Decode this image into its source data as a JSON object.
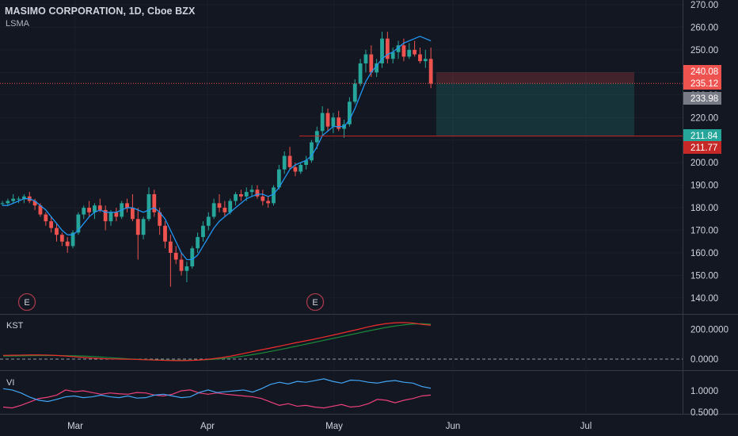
{
  "header": {
    "symbol": "MASIMO CORPORATION, 1D, Cboe BZX",
    "indicator": "LSMA"
  },
  "panes": {
    "kst_label": "KST",
    "vi_label": "VI"
  },
  "earnings_marker": "E",
  "colors": {
    "background": "#131722",
    "up": "#26a69a",
    "down": "#ef5350",
    "lsma": "#2196f3",
    "kst": "#ef2c2c",
    "kst_signal": "#1b8a3a",
    "vi_plus": "#42a5f5",
    "vi_minus": "#ec407a",
    "grid": "#363a45"
  },
  "price_axis": {
    "ticks": [
      "270.00",
      "260.00",
      "250.00",
      "240.00",
      "230.00",
      "220.00",
      "210.00",
      "200.00",
      "190.00",
      "180.00",
      "170.00",
      "160.00",
      "150.00",
      "140.00"
    ],
    "tags": [
      {
        "text": "240.08",
        "bg": "#ef5350"
      },
      {
        "text": "235.12",
        "bg": "#ef5350"
      },
      {
        "text": "233.98",
        "bg": "#787b86"
      },
      {
        "text": "211.84",
        "bg": "#26a69a"
      },
      {
        "text": "211.77",
        "bg": "#c62828"
      }
    ]
  },
  "kst_axis": {
    "ticks": [
      "200.0000",
      "0.0000"
    ]
  },
  "vi_axis": {
    "ticks": [
      "1.0000",
      "0.5000"
    ]
  },
  "time_axis": {
    "labels": [
      "Mar",
      "Apr",
      "May",
      "Jun",
      "Jul"
    ]
  },
  "chart_data": {
    "type": "candlestick",
    "title": "MASIMO CORPORATION, 1D, Cboe BZX",
    "ylim": [
      132,
      275
    ],
    "candles": [
      [
        182,
        183,
        181,
        182
      ],
      [
        182,
        184,
        181,
        183
      ],
      [
        183,
        186,
        182,
        184
      ],
      [
        184,
        185,
        182,
        184
      ],
      [
        184,
        186,
        182,
        185
      ],
      [
        185,
        187,
        182,
        183
      ],
      [
        183,
        184,
        179,
        181
      ],
      [
        181,
        182,
        176,
        177
      ],
      [
        177,
        178,
        172,
        174
      ],
      [
        174,
        176,
        169,
        171
      ],
      [
        171,
        173,
        165,
        168
      ],
      [
        168,
        169,
        163,
        165
      ],
      [
        165,
        167,
        160,
        163
      ],
      [
        163,
        170,
        162,
        169
      ],
      [
        169,
        178,
        168,
        177
      ],
      [
        177,
        181,
        175,
        180
      ],
      [
        180,
        183,
        176,
        178
      ],
      [
        178,
        182,
        175,
        181
      ],
      [
        181,
        184,
        178,
        179
      ],
      [
        179,
        181,
        170,
        174
      ],
      [
        174,
        179,
        172,
        178
      ],
      [
        178,
        180,
        174,
        176
      ],
      [
        176,
        183,
        175,
        182
      ],
      [
        182,
        184,
        178,
        180
      ],
      [
        180,
        186,
        174,
        175
      ],
      [
        175,
        180,
        157,
        168
      ],
      [
        168,
        176,
        166,
        175
      ],
      [
        175,
        189,
        174,
        186
      ],
      [
        186,
        188,
        176,
        178
      ],
      [
        178,
        180,
        168,
        172
      ],
      [
        172,
        174,
        162,
        165
      ],
      [
        165,
        168,
        145,
        160
      ],
      [
        160,
        163,
        155,
        157
      ],
      [
        157,
        160,
        150,
        152
      ],
      [
        152,
        156,
        147,
        154
      ],
      [
        154,
        163,
        153,
        162
      ],
      [
        162,
        169,
        160,
        167
      ],
      [
        167,
        174,
        165,
        172
      ],
      [
        172,
        178,
        170,
        176
      ],
      [
        176,
        184,
        175,
        182
      ],
      [
        182,
        186,
        178,
        180
      ],
      [
        180,
        183,
        176,
        178
      ],
      [
        178,
        184,
        177,
        183
      ],
      [
        183,
        187,
        181,
        186
      ],
      [
        186,
        188,
        183,
        185
      ],
      [
        185,
        189,
        183,
        187
      ],
      [
        187,
        190,
        185,
        188
      ],
      [
        188,
        190,
        184,
        185
      ],
      [
        185,
        188,
        181,
        183
      ],
      [
        183,
        185,
        180,
        182
      ],
      [
        182,
        190,
        181,
        189
      ],
      [
        189,
        199,
        188,
        197
      ],
      [
        197,
        205,
        195,
        203
      ],
      [
        203,
        207,
        197,
        198
      ],
      [
        198,
        200,
        194,
        196
      ],
      [
        196,
        200,
        195,
        199
      ],
      [
        199,
        203,
        197,
        201
      ],
      [
        201,
        210,
        200,
        209
      ],
      [
        209,
        216,
        206,
        214
      ],
      [
        214,
        225,
        212,
        222
      ],
      [
        222,
        224,
        214,
        216
      ],
      [
        216,
        222,
        213,
        220
      ],
      [
        220,
        223,
        214,
        215
      ],
      [
        215,
        219,
        211,
        217
      ],
      [
        217,
        229,
        216,
        227
      ],
      [
        227,
        237,
        226,
        235
      ],
      [
        235,
        246,
        234,
        244
      ],
      [
        244,
        250,
        240,
        248
      ],
      [
        248,
        252,
        238,
        240
      ],
      [
        240,
        246,
        238,
        244
      ],
      [
        244,
        258,
        242,
        255
      ],
      [
        255,
        258,
        244,
        246
      ],
      [
        246,
        251,
        244,
        249
      ],
      [
        249,
        254,
        246,
        252
      ],
      [
        252,
        255,
        245,
        247
      ],
      [
        247,
        253,
        246,
        250
      ],
      [
        250,
        254,
        247,
        248
      ],
      [
        248,
        251,
        244,
        245
      ],
      [
        245,
        250,
        242,
        246
      ],
      [
        246,
        251,
        233,
        235
      ]
    ],
    "lsma": [
      181,
      181,
      182,
      183,
      184,
      184,
      183,
      181,
      179,
      176,
      173,
      170,
      168,
      168,
      170,
      173,
      176,
      178,
      179,
      178,
      178,
      178,
      179,
      180,
      180,
      179,
      178,
      179,
      180,
      178,
      175,
      170,
      165,
      160,
      157,
      157,
      159,
      163,
      167,
      171,
      174,
      176,
      178,
      180,
      182,
      184,
      185,
      186,
      186,
      185,
      186,
      189,
      193,
      197,
      199,
      200,
      201,
      203,
      207,
      212,
      214,
      216,
      216,
      216,
      219,
      224,
      230,
      236,
      240,
      243,
      246,
      248,
      249,
      251,
      253,
      254,
      255,
      256,
      255,
      254
    ],
    "kst": {
      "name": "KST",
      "ylim": [
        -60,
        300
      ],
      "kst": [
        25,
        26,
        27,
        28,
        28,
        27,
        24,
        20,
        15,
        10,
        6,
        3,
        1,
        0,
        -1,
        -3,
        -5,
        -7,
        -9,
        -10,
        -10,
        -8,
        -4,
        2,
        10,
        20,
        32,
        45,
        58,
        70,
        82,
        95,
        108,
        120,
        132,
        145,
        158,
        172,
        186,
        200,
        215,
        228,
        238,
        244,
        246,
        243,
        234,
        228
      ],
      "signal": [
        20,
        21,
        22,
        23,
        24,
        24,
        24,
        23,
        22,
        20,
        17,
        13,
        9,
        5,
        1,
        -2,
        -4,
        -6,
        -7,
        -8,
        -8,
        -7,
        -5,
        -2,
        3,
        9,
        17,
        26,
        36,
        47,
        59,
        71,
        84,
        97,
        110,
        123,
        136,
        149,
        162,
        175,
        188,
        200,
        212,
        222,
        230,
        236,
        238,
        235
      ]
    },
    "vi": {
      "name": "VI",
      "ylim": [
        0.4,
        1.5
      ],
      "vi_plus": [
        1.05,
        1.02,
        0.95,
        0.85,
        0.78,
        0.75,
        0.8,
        0.86,
        0.88,
        0.84,
        0.86,
        0.9,
        0.86,
        0.84,
        0.88,
        0.83,
        0.84,
        0.9,
        0.92,
        0.88,
        0.84,
        0.86,
        0.96,
        1.02,
        0.96,
        0.98,
        1.0,
        1.02,
        0.97,
        1.05,
        1.15,
        1.2,
        1.16,
        1.22,
        1.2,
        1.24,
        1.28,
        1.22,
        1.18,
        1.25,
        1.24,
        1.2,
        1.18,
        1.22,
        1.24,
        1.2,
        1.18,
        1.1,
        1.06
      ],
      "vi_minus": [
        0.62,
        0.6,
        0.66,
        0.74,
        0.82,
        0.85,
        0.9,
        1.02,
        0.98,
        1.0,
        0.96,
        0.92,
        0.95,
        0.93,
        0.92,
        0.96,
        0.95,
        0.9,
        0.88,
        0.92,
        1.0,
        1.02,
        0.95,
        0.92,
        0.95,
        0.92,
        0.9,
        0.88,
        0.86,
        0.82,
        0.74,
        0.66,
        0.7,
        0.64,
        0.66,
        0.62,
        0.6,
        0.64,
        0.68,
        0.62,
        0.64,
        0.7,
        0.8,
        0.78,
        0.72,
        0.78,
        0.82,
        0.88,
        0.9
      ]
    }
  },
  "trade_box": {
    "stop": 240.08,
    "entry": 235.12,
    "target": 211.84
  },
  "support_line": 211.77
}
